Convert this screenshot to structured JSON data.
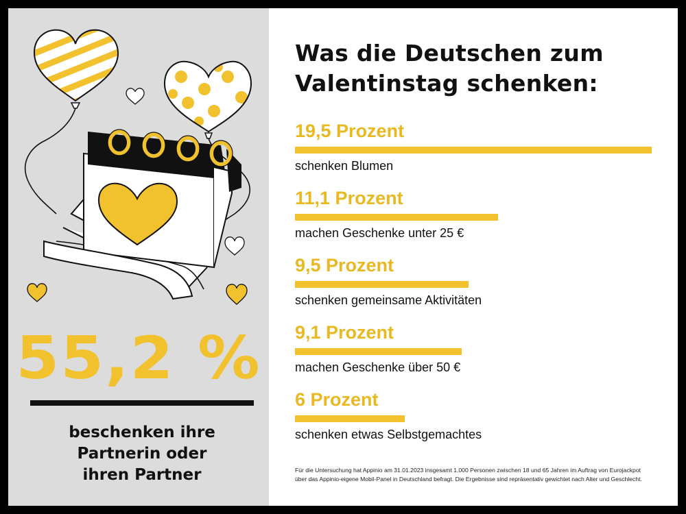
{
  "left": {
    "big_stat": "55,2 %",
    "caption": "beschenken ihre\nPartnerin oder\nihren Partner"
  },
  "title": "Was die Deutschen zum\nValentinstag schenken:",
  "footnote": "Für die Untersuchung hat Appinio am 31.01.2023 insgesamt 1.000 Personen zwischen 18 und 65 Jahren im Auftrag von Eurojackpot\nüber das Appinio-eigene Mobil-Panel in Deutschland befragt. Die Ergebnisse sind repräsentativ gewichtet nach Alter und Geschlecht.",
  "colors": {
    "accent": "#f2c12e",
    "accent_text": "#e8b923",
    "text": "#111111",
    "left_bg": "#dcdcdc",
    "frame": "#000000"
  },
  "chart_data": {
    "type": "bar",
    "orientation": "horizontal",
    "items": [
      {
        "value": 19.5,
        "value_label": "19,5 Prozent",
        "label": "schenken Blumen"
      },
      {
        "value": 11.1,
        "value_label": "11,1 Prozent",
        "label": "machen Geschenke unter 25 €"
      },
      {
        "value": 9.5,
        "value_label": "9,5 Prozent",
        "label": "schenken gemeinsame Aktivitäten"
      },
      {
        "value": 9.1,
        "value_label": "9,1 Prozent",
        "label": "machen Geschenke über 50 €"
      },
      {
        "value": 6,
        "value_label": "6 Prozent",
        "label": "schenken etwas Selbstgemachtes"
      }
    ]
  }
}
